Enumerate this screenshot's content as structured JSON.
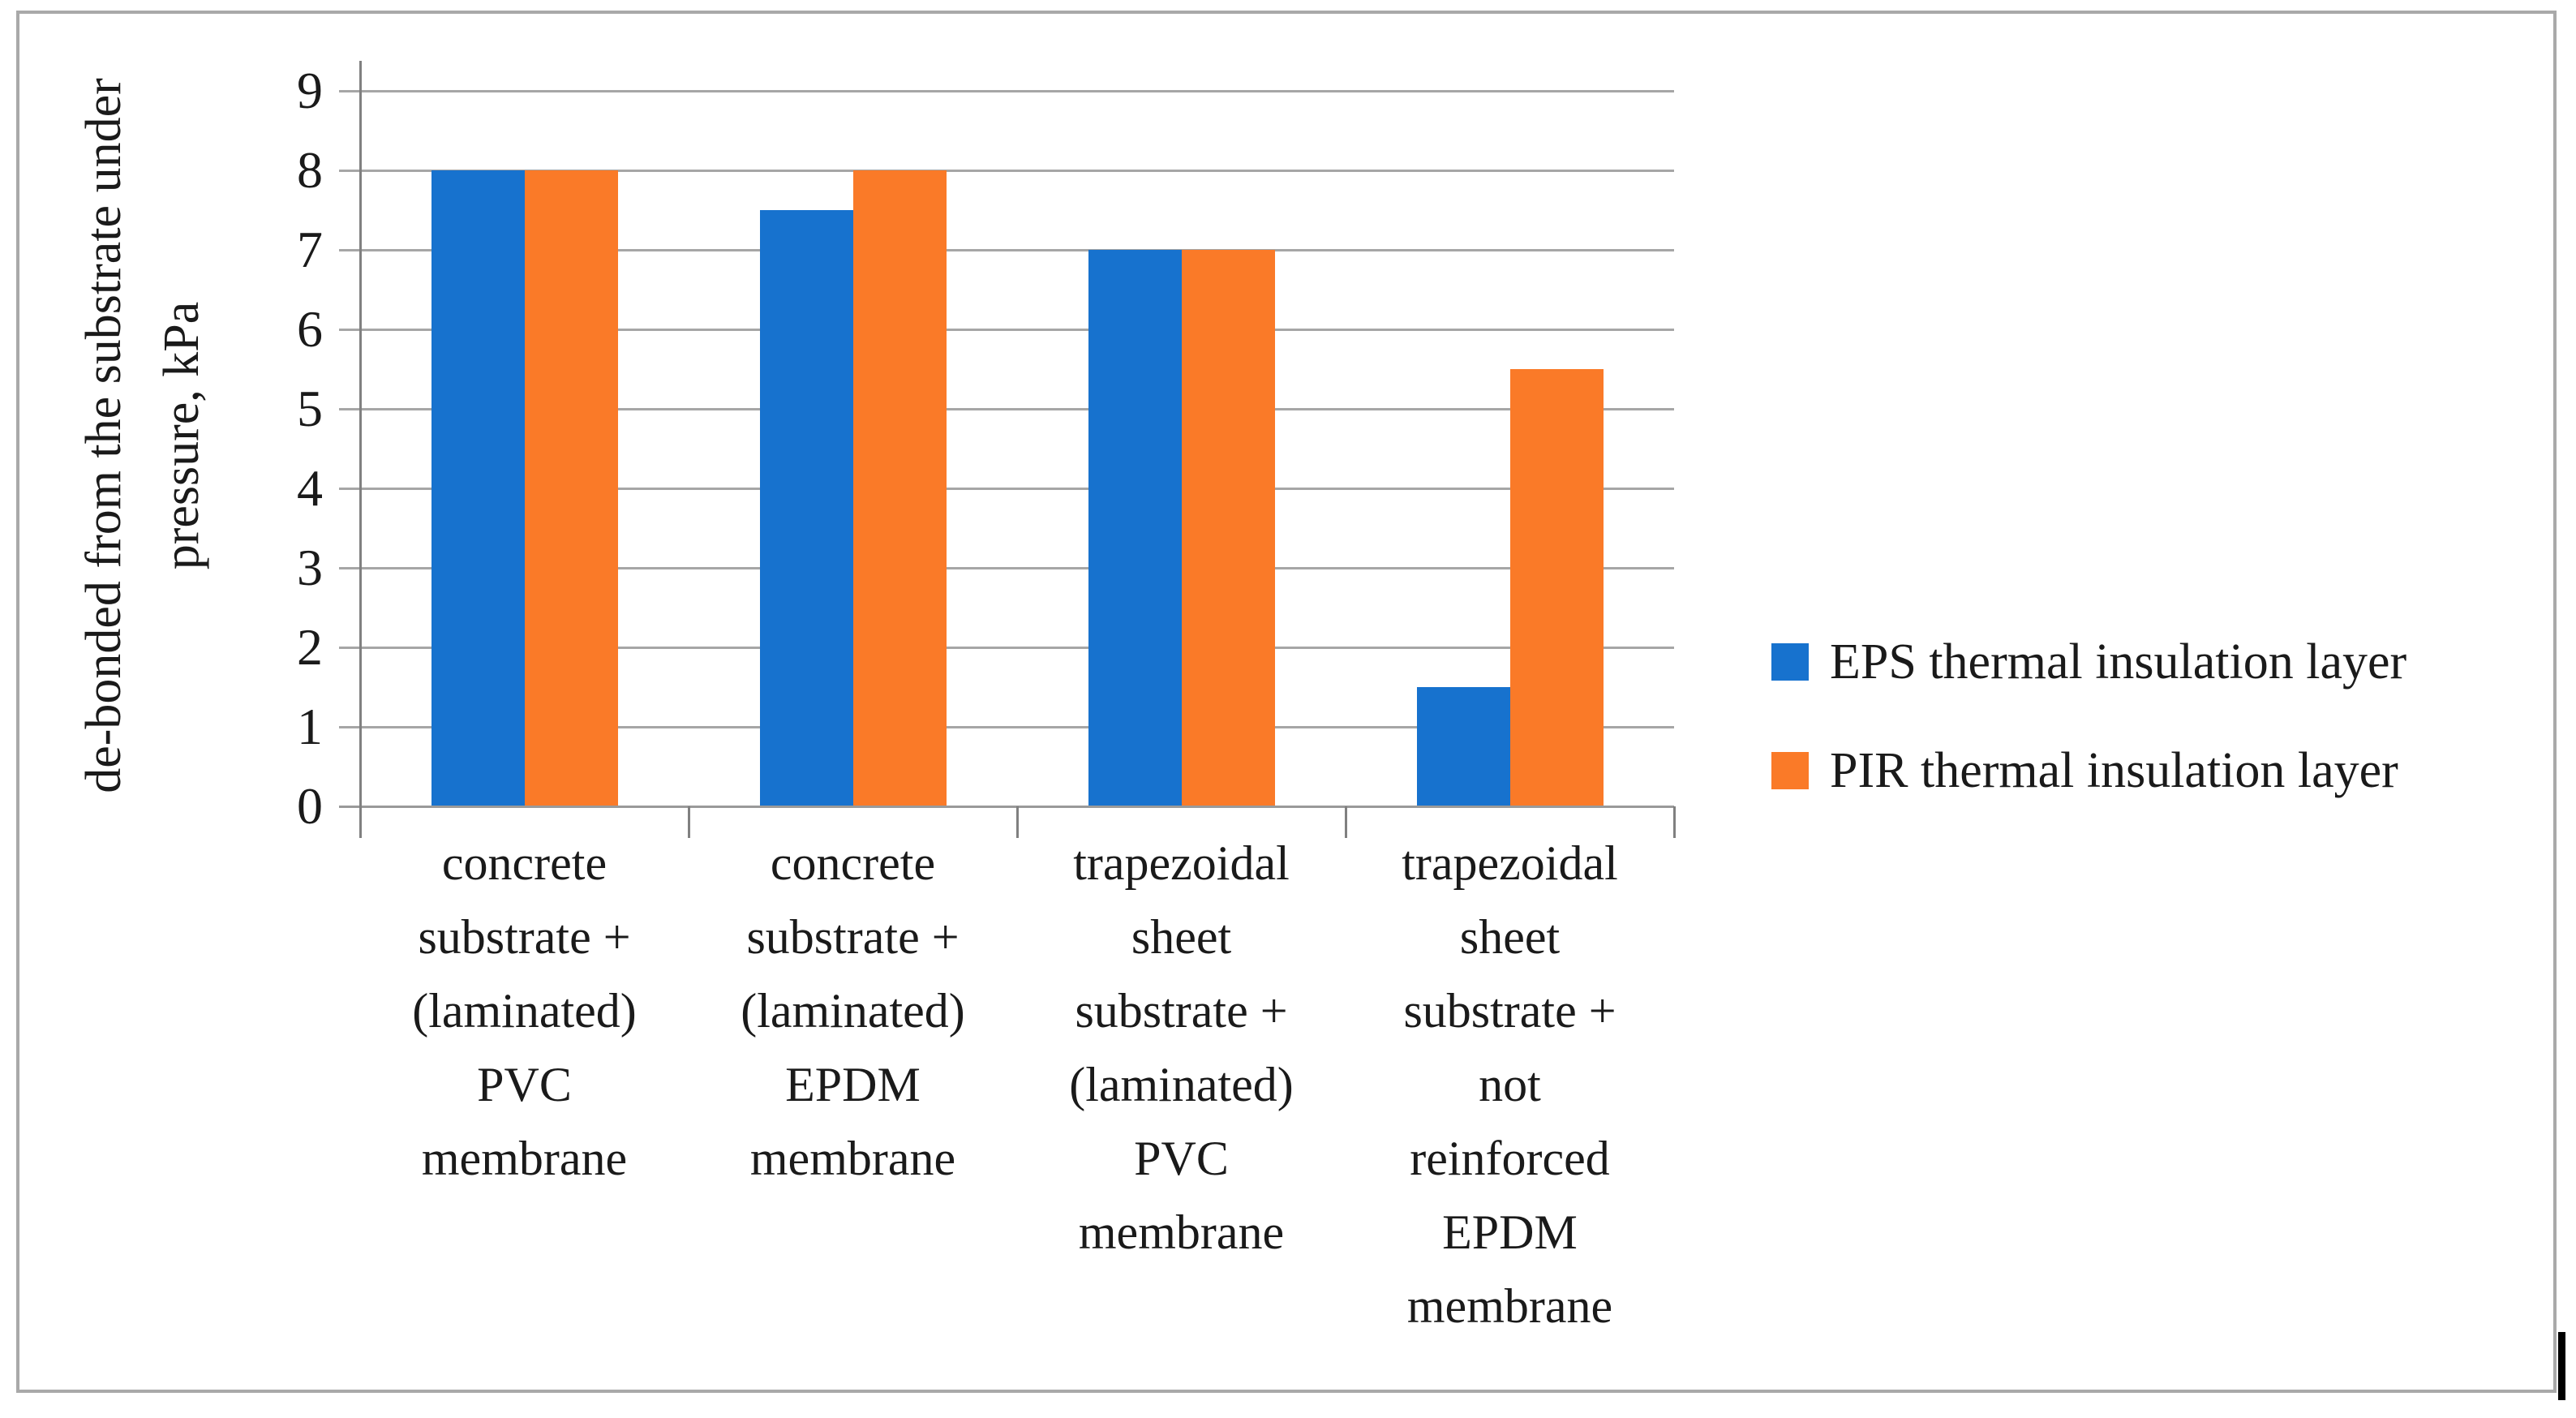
{
  "figure": {
    "background": "#ffffff",
    "border_color": "#a9a9a9"
  },
  "colors": {
    "grid": "#a6a6a6",
    "axis": "#808080",
    "text": "#1a1a1a",
    "eps_blue": "#1772ce",
    "pir_orange": "#fa7a28"
  },
  "chart_data": {
    "type": "bar",
    "title": "",
    "ylabel": "de-bonded from the substrate under pressure, kPa",
    "ylabel_lines": [
      "de-bonded from the substrate under",
      "pressure, kPa"
    ],
    "xlabel": "",
    "ylim": [
      0,
      9
    ],
    "y_ticks": [
      0,
      1,
      2,
      3,
      4,
      5,
      6,
      7,
      8,
      9
    ],
    "grid": true,
    "legend_position": "right",
    "categories": [
      "concrete substrate + (laminated) PVC membrane",
      "concrete substrate + (laminated) EPDM membrane",
      "trapezoidal sheet substrate + (laminated) PVC membrane",
      "trapezoidal sheet substrate + not reinforced EPDM membrane"
    ],
    "category_lines": [
      [
        "concrete",
        "substrate +",
        "(laminated)",
        "PVC",
        "membrane"
      ],
      [
        "concrete",
        "substrate +",
        "(laminated)",
        "EPDM",
        "membrane"
      ],
      [
        "trapezoidal",
        "sheet",
        "substrate +",
        "(laminated)",
        "PVC",
        "membrane"
      ],
      [
        "trapezoidal",
        "sheet",
        "substrate +",
        "not",
        "reinforced",
        "EPDM",
        "membrane"
      ]
    ],
    "series": [
      {
        "name": "EPS thermal insulation layer",
        "color": "#1772ce",
        "values": [
          8,
          7.5,
          7,
          1.5
        ]
      },
      {
        "name": "PIR thermal insulation layer",
        "color": "#fa7a28",
        "values": [
          8,
          8,
          7,
          5.5
        ]
      }
    ]
  }
}
